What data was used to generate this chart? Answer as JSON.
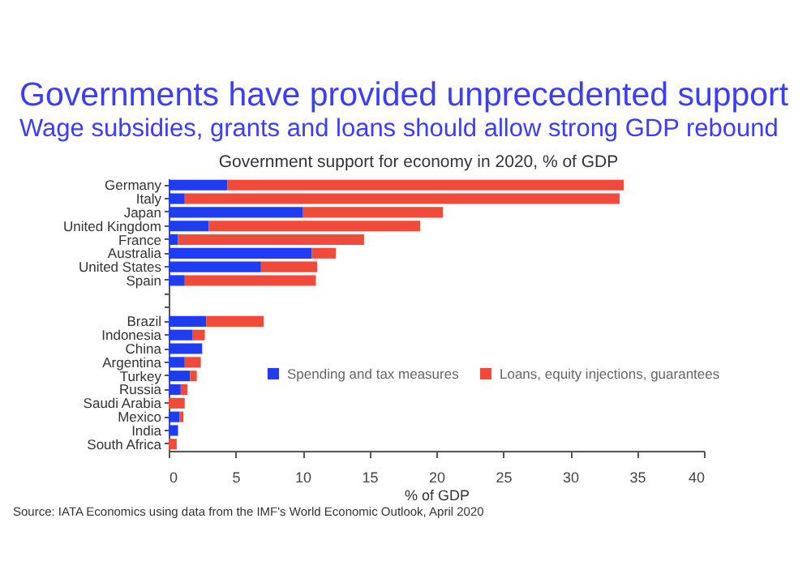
{
  "chart_data": {
    "type": "bar",
    "orientation": "horizontal",
    "stacked": true,
    "title": "Governments have provided unprecedented support",
    "subtitle": "Wage subsidies, grants and loans should allow strong GDP rebound",
    "xlabel": "% of GDP",
    "categories": [
      "Germany",
      "Italy",
      "Japan",
      "United Kingdom",
      "France",
      "Australia",
      "United States",
      "Spain",
      null,
      null,
      "Brazil",
      "Indonesia",
      "China",
      "Argentina",
      "Turkey",
      "Russia",
      "Saudi Arabia",
      "Mexico",
      "India",
      "South Africa"
    ],
    "series": [
      {
        "name": "Spending and tax measures",
        "color": "#1f3cf0",
        "values": [
          4.4,
          1.2,
          10.0,
          3.0,
          0.7,
          10.7,
          6.9,
          1.2,
          null,
          null,
          2.8,
          1.8,
          2.5,
          1.2,
          1.6,
          0.9,
          0,
          0.8,
          0.7,
          0
        ]
      },
      {
        "name": "Loans, equity injections, guarantees",
        "color": "#f04b3a",
        "values": [
          29.6,
          32.5,
          10.5,
          15.8,
          13.9,
          1.8,
          4.2,
          9.8,
          null,
          null,
          4.3,
          0.9,
          0,
          1.2,
          0.5,
          0.5,
          1.2,
          0.3,
          0,
          0.6
        ]
      }
    ],
    "xlim": [
      0,
      40
    ],
    "xticks": [
      0,
      5,
      10,
      15,
      20,
      25,
      30,
      35,
      40
    ],
    "legend": "right",
    "grid": false,
    "annotations": [
      "Government support for economy in 2020, % of GDP",
      "Source: IATA Economics using data from the IMF's World Economic Outlook, April 2020"
    ]
  }
}
